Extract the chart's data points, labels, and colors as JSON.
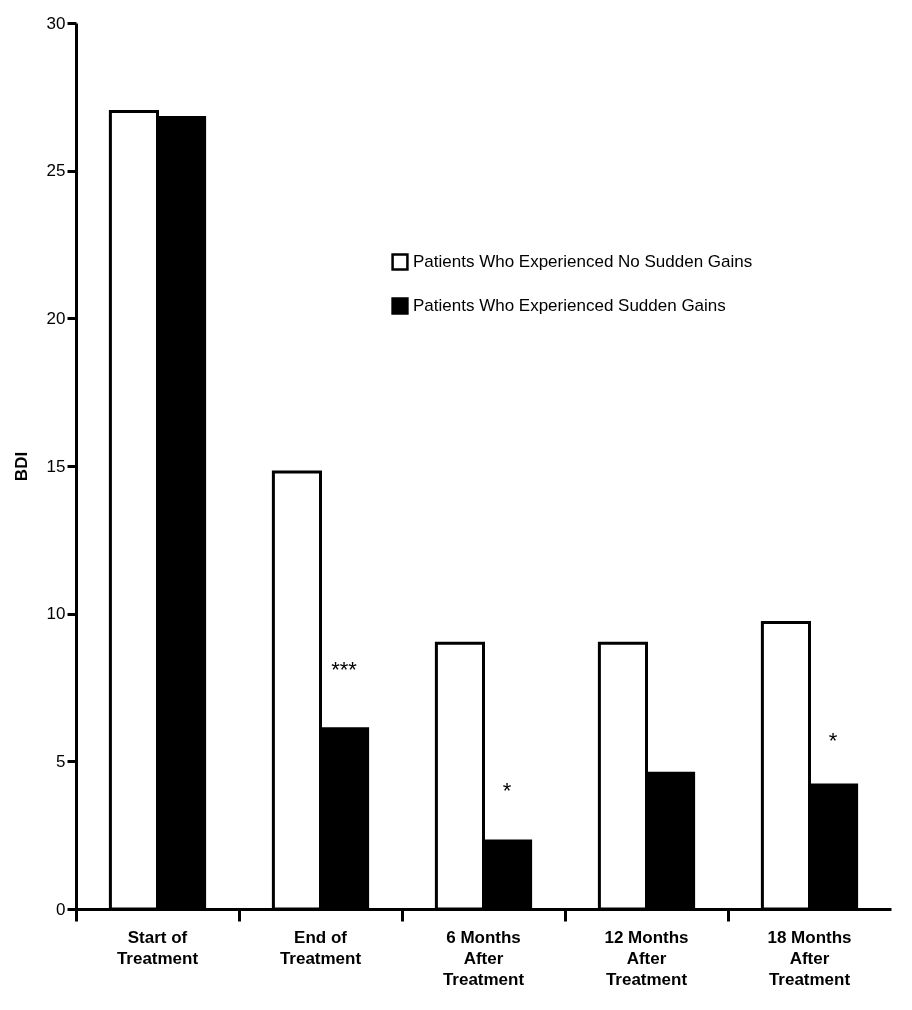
{
  "chart_data": {
    "type": "bar",
    "ylabel": "BDI",
    "categories": [
      "Start of Treatment",
      "End of Treatment",
      "6 Months After Treatment",
      "12 Months After Treatment",
      "18 Months After Treatment"
    ],
    "series": [
      {
        "name": "Patients Who Experienced No Sudden Gains",
        "color": "#ffffff",
        "values": [
          27.0,
          14.8,
          9.0,
          9.0,
          9.7
        ]
      },
      {
        "name": "Patients Who Experienced Sudden Gains",
        "color": "#000000",
        "values": [
          26.8,
          6.1,
          2.3,
          4.6,
          4.2
        ]
      }
    ],
    "ylim": [
      0,
      30
    ],
    "yticks": [
      0,
      5,
      10,
      15,
      20,
      25,
      30
    ],
    "grid": false,
    "legend": "top right",
    "annotations": [
      {
        "text": "***",
        "x": "End of Treatment",
        "y": 8.1
      },
      {
        "text": "*",
        "x": "6 Months After Treatment",
        "y": 4.0
      },
      {
        "text": "*",
        "x": "18 Months After Treatment",
        "y": 5.7
      }
    ]
  }
}
